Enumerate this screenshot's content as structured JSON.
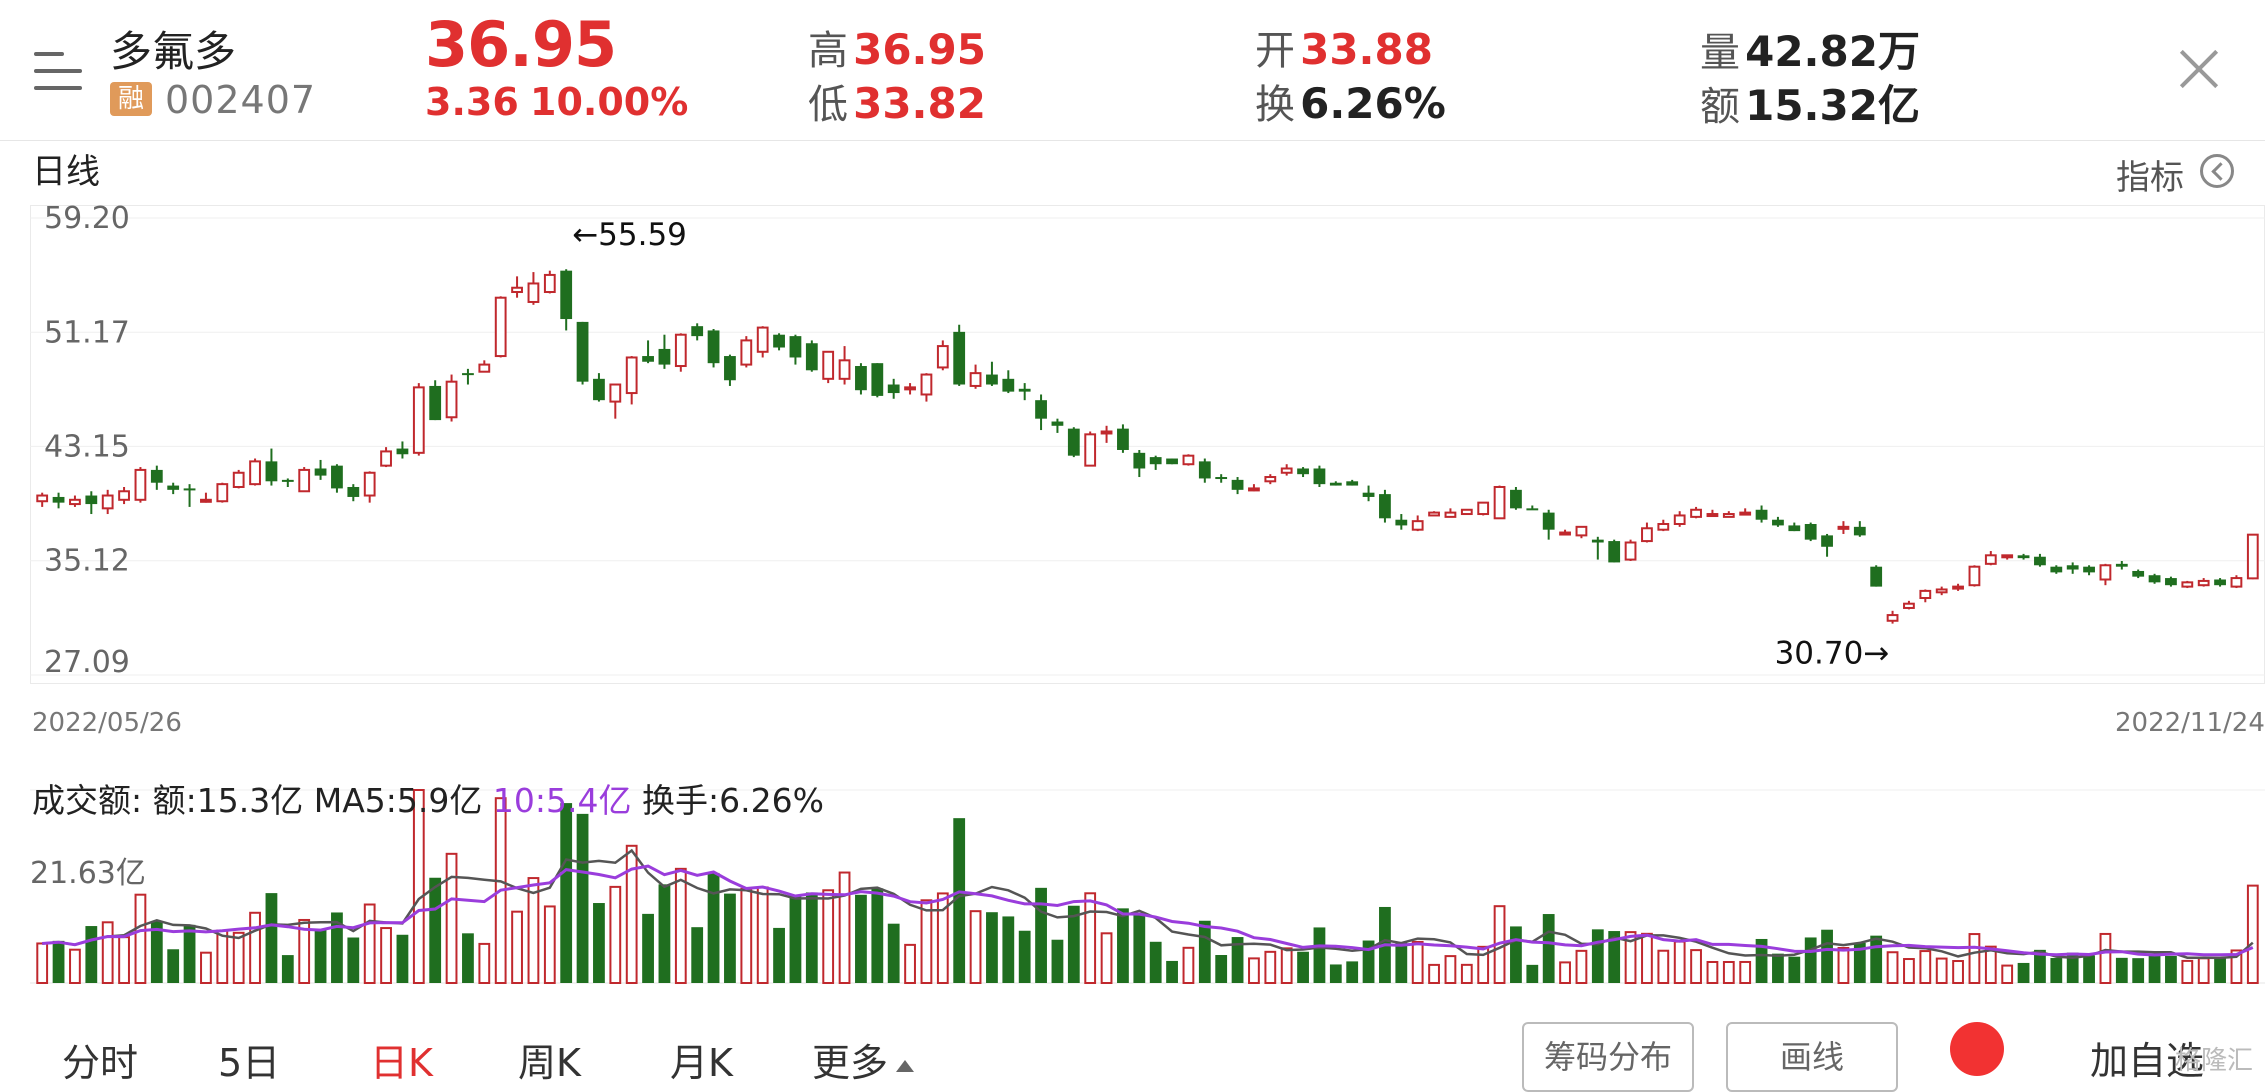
{
  "header": {
    "stock_name": "多氟多",
    "badge": "融",
    "code": "002407",
    "price": "36.95",
    "change": "3.36",
    "change_pct": "10.00%",
    "high_label": "高",
    "high": "36.95",
    "low_label": "低",
    "low": "33.82",
    "open_label": "开",
    "open": "33.88",
    "turnover_label": "换",
    "turnover": "6.26%",
    "volume_label": "量",
    "volume": "42.82万",
    "amount_label": "额",
    "amount": "15.32亿"
  },
  "period": {
    "label": "日线",
    "indicator_label": "指标"
  },
  "kline": {
    "y_labels": [
      "59.20",
      "51.17",
      "43.15",
      "35.12",
      "27.09"
    ],
    "max_note": "←55.59",
    "min_note": "30.70→",
    "start_date": "2022/05/26",
    "end_date": "2022/11/24"
  },
  "volume_panel": {
    "title": "成交额:",
    "amount": "额:15.3亿",
    "ma5": "MA5:5.9亿",
    "ma10": "10:5.4亿",
    "turnover": "换手:6.26%",
    "y_label": "21.63亿"
  },
  "tabs": [
    {
      "label": "分时",
      "active": false
    },
    {
      "label": "5日",
      "active": false
    },
    {
      "label": "日K",
      "active": true
    },
    {
      "label": "周K",
      "active": false
    },
    {
      "label": "月K",
      "active": false
    },
    {
      "label": "更多",
      "active": false
    }
  ],
  "buttons": {
    "chips": "筹码分布",
    "draw": "画线",
    "add_watch": "加自选"
  },
  "watermark": "格隆汇",
  "colors": {
    "up": "#c0282d",
    "down": "#1f6e1f",
    "price_red": "#e03030",
    "ma5": "#555555",
    "ma10": "#9a3ddc"
  },
  "chart_data": {
    "type": "candlestick",
    "y_range": [
      27.09,
      59.2
    ],
    "candles": [
      [
        39.3,
        39.7,
        39.9,
        38.9
      ],
      [
        39.6,
        39.2,
        39.9,
        38.8
      ],
      [
        39.1,
        39.4,
        39.7,
        38.9
      ],
      [
        39.7,
        39.1,
        40.0,
        38.4
      ],
      [
        38.8,
        39.7,
        40.1,
        38.4
      ],
      [
        39.4,
        40.0,
        40.3,
        39.1
      ],
      [
        39.4,
        41.5,
        41.7,
        39.2
      ],
      [
        41.5,
        40.6,
        41.8,
        40.1
      ],
      [
        40.4,
        40.1,
        40.6,
        39.8
      ],
      [
        40.2,
        40.1,
        40.5,
        38.9
      ],
      [
        39.4,
        39.4,
        39.9,
        39.2
      ],
      [
        39.3,
        40.5,
        40.6,
        39.2
      ],
      [
        40.3,
        41.3,
        41.5,
        40.2
      ],
      [
        40.5,
        42.1,
        42.3,
        40.4
      ],
      [
        42.1,
        40.7,
        43.0,
        40.4
      ],
      [
        40.8,
        40.7,
        40.9,
        40.3
      ],
      [
        40.0,
        41.5,
        41.7,
        40.0
      ],
      [
        41.6,
        41.1,
        42.2,
        40.8
      ],
      [
        41.8,
        40.2,
        41.9,
        39.9
      ],
      [
        40.3,
        39.6,
        40.5,
        39.3
      ],
      [
        39.7,
        41.3,
        41.4,
        39.2
      ],
      [
        41.8,
        42.8,
        43.1,
        41.7
      ],
      [
        43.0,
        42.6,
        43.5,
        42.3
      ],
      [
        42.7,
        47.3,
        47.6,
        42.5
      ],
      [
        47.4,
        45.0,
        47.8,
        45.0
      ],
      [
        45.2,
        47.7,
        48.2,
        44.9
      ],
      [
        48.3,
        48.2,
        48.6,
        47.5
      ],
      [
        48.4,
        48.9,
        49.2,
        48.4
      ],
      [
        49.5,
        53.6,
        53.7,
        49.4
      ],
      [
        54.0,
        54.3,
        55.1,
        53.6
      ],
      [
        53.3,
        54.6,
        55.4,
        53.1
      ],
      [
        54.0,
        55.2,
        55.5,
        53.9
      ],
      [
        55.5,
        52.1,
        55.6,
        51.3
      ],
      [
        51.9,
        47.7,
        51.9,
        47.5
      ],
      [
        47.9,
        46.4,
        48.3,
        46.3
      ],
      [
        46.3,
        47.5,
        47.5,
        45.1
      ],
      [
        46.9,
        49.4,
        49.5,
        46.1
      ],
      [
        49.5,
        49.1,
        50.6,
        49.0
      ],
      [
        50.0,
        48.9,
        51.0,
        48.6
      ],
      [
        48.8,
        51.0,
        51.1,
        48.4
      ],
      [
        51.6,
        50.9,
        51.8,
        50.6
      ],
      [
        51.3,
        49.0,
        51.4,
        48.7
      ],
      [
        49.5,
        47.8,
        49.6,
        47.4
      ],
      [
        48.9,
        50.6,
        50.9,
        48.7
      ],
      [
        49.8,
        51.5,
        51.6,
        49.4
      ],
      [
        51.0,
        50.1,
        51.1,
        49.9
      ],
      [
        50.9,
        49.4,
        51.0,
        48.9
      ],
      [
        50.4,
        48.5,
        50.6,
        48.4
      ],
      [
        47.9,
        49.8,
        49.8,
        47.6
      ],
      [
        47.9,
        49.2,
        50.2,
        47.5
      ],
      [
        48.8,
        47.1,
        49.0,
        46.8
      ],
      [
        49.0,
        46.7,
        49.0,
        46.6
      ],
      [
        47.5,
        46.9,
        47.9,
        46.5
      ],
      [
        47.2,
        47.3,
        47.6,
        46.8
      ],
      [
        46.8,
        48.2,
        48.3,
        46.3
      ],
      [
        48.7,
        50.2,
        50.6,
        48.5
      ],
      [
        51.2,
        47.5,
        51.7,
        47.4
      ],
      [
        47.4,
        48.3,
        48.9,
        47.2
      ],
      [
        48.2,
        47.5,
        49.1,
        47.4
      ],
      [
        47.9,
        47.0,
        48.5,
        46.9
      ],
      [
        47.2,
        47.0,
        47.6,
        46.4
      ],
      [
        46.4,
        45.1,
        46.8,
        44.3
      ],
      [
        44.9,
        44.6,
        45.1,
        44.1
      ],
      [
        44.4,
        42.5,
        44.5,
        42.4
      ],
      [
        41.8,
        44.0,
        44.2,
        41.8
      ],
      [
        44.1,
        44.2,
        44.6,
        43.4
      ],
      [
        44.4,
        42.9,
        44.7,
        42.7
      ],
      [
        42.7,
        41.6,
        42.9,
        41.0
      ],
      [
        42.4,
        41.9,
        42.5,
        41.5
      ],
      [
        42.3,
        41.9,
        42.3,
        41.9
      ],
      [
        41.9,
        42.5,
        42.6,
        41.8
      ],
      [
        42.1,
        40.9,
        42.3,
        40.6
      ],
      [
        41.0,
        40.9,
        41.2,
        40.6
      ],
      [
        40.8,
        40.1,
        41.0,
        39.8
      ],
      [
        40.1,
        40.2,
        40.5,
        40.0
      ],
      [
        40.7,
        41.0,
        41.2,
        40.5
      ],
      [
        41.3,
        41.6,
        41.9,
        41.1
      ],
      [
        41.6,
        41.2,
        41.7,
        41.0
      ],
      [
        41.6,
        40.5,
        41.8,
        40.3
      ],
      [
        40.6,
        40.4,
        40.7,
        40.4
      ],
      [
        40.7,
        40.4,
        40.8,
        40.4
      ],
      [
        39.9,
        39.6,
        40.4,
        39.3
      ],
      [
        39.8,
        38.1,
        40.1,
        37.8
      ],
      [
        38.0,
        37.6,
        38.4,
        37.3
      ],
      [
        37.3,
        37.9,
        38.3,
        37.2
      ],
      [
        38.3,
        38.5,
        38.6,
        38.3
      ],
      [
        38.2,
        38.5,
        38.8,
        38.2
      ],
      [
        38.4,
        38.7,
        38.7,
        38.4
      ],
      [
        38.4,
        39.2,
        39.2,
        38.3
      ],
      [
        38.1,
        40.3,
        40.4,
        38.2
      ],
      [
        40.1,
        38.8,
        40.3,
        38.7
      ],
      [
        38.8,
        38.7,
        39.0,
        38.7
      ],
      [
        38.5,
        37.3,
        38.7,
        36.6
      ],
      [
        37.0,
        37.1,
        37.3,
        36.9
      ],
      [
        36.9,
        37.5,
        37.5,
        36.7
      ],
      [
        36.6,
        36.4,
        36.8,
        35.2
      ],
      [
        36.5,
        35.0,
        36.6,
        35.0
      ],
      [
        35.2,
        36.4,
        36.6,
        35.1
      ],
      [
        36.5,
        37.4,
        37.8,
        36.4
      ],
      [
        37.3,
        37.7,
        38.0,
        37.2
      ],
      [
        37.7,
        38.3,
        38.6,
        37.5
      ],
      [
        38.2,
        38.7,
        38.9,
        38.1
      ],
      [
        38.3,
        38.4,
        38.7,
        38.3
      ],
      [
        38.2,
        38.4,
        38.6,
        38.2
      ],
      [
        38.5,
        38.5,
        38.8,
        38.4
      ],
      [
        38.7,
        38.0,
        39.0,
        37.8
      ],
      [
        38.0,
        37.6,
        38.2,
        37.5
      ],
      [
        37.6,
        37.2,
        37.8,
        37.2
      ],
      [
        37.7,
        36.6,
        37.8,
        36.5
      ],
      [
        36.9,
        36.1,
        37.0,
        35.4
      ],
      [
        37.5,
        37.5,
        37.9,
        37.0
      ],
      [
        37.5,
        36.9,
        37.9,
        36.8
      ],
      [
        34.7,
        33.3,
        34.8,
        33.3
      ],
      [
        30.9,
        31.3,
        31.6,
        30.7
      ],
      [
        31.8,
        32.1,
        32.3,
        31.7
      ],
      [
        32.5,
        33.0,
        33.1,
        32.2
      ],
      [
        32.9,
        33.1,
        33.3,
        32.7
      ],
      [
        33.2,
        33.3,
        33.5,
        33.0
      ],
      [
        33.4,
        34.7,
        34.8,
        33.3
      ],
      [
        34.9,
        35.5,
        35.8,
        34.8
      ],
      [
        35.5,
        35.5,
        35.5,
        35.2
      ],
      [
        35.5,
        35.3,
        35.6,
        35.2
      ],
      [
        35.4,
        34.8,
        35.6,
        34.7
      ],
      [
        34.7,
        34.3,
        34.8,
        34.2
      ],
      [
        34.8,
        34.5,
        35.0,
        34.2
      ],
      [
        34.7,
        34.3,
        34.8,
        34.1
      ],
      [
        33.8,
        34.8,
        34.9,
        33.4
      ],
      [
        34.9,
        34.7,
        35.1,
        34.5
      ],
      [
        34.4,
        34.0,
        34.5,
        33.9
      ],
      [
        34.1,
        33.6,
        34.2,
        33.5
      ],
      [
        33.9,
        33.4,
        34.0,
        33.3
      ],
      [
        33.3,
        33.6,
        33.7,
        33.2
      ],
      [
        33.4,
        33.7,
        33.9,
        33.3
      ],
      [
        33.8,
        33.4,
        33.9,
        33.3
      ],
      [
        33.3,
        33.9,
        34.1,
        33.2
      ],
      [
        33.88,
        36.95,
        36.95,
        33.82
      ]
    ],
    "volume_unit": "亿",
    "volume_y_label": 21.63
  }
}
